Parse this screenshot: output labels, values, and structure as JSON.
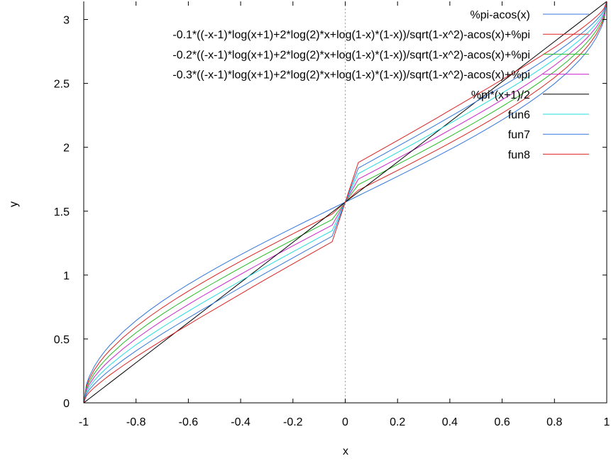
{
  "chart_data": {
    "type": "line",
    "xlabel": "x",
    "ylabel": "y",
    "xlim": [
      -1,
      1
    ],
    "ylim": [
      0,
      3.1416
    ],
    "xticks": [
      -1,
      -0.8,
      -0.6,
      -0.4,
      -0.2,
      0,
      0.2,
      0.4,
      0.6,
      0.8,
      1
    ],
    "xtick_labels": [
      "-1",
      "-0.8",
      "-0.6",
      "-0.4",
      "-0.2",
      "0",
      "0.2",
      "0.4",
      "0.6",
      "0.8",
      "1"
    ],
    "yticks": [
      0,
      0.5,
      1,
      1.5,
      2,
      2.5,
      3
    ],
    "ytick_labels": [
      "0",
      "0.5",
      "1",
      "1.5",
      "2",
      "2.5",
      "3"
    ],
    "grid": false,
    "zero_line": "dotted-vertical-at-x-0",
    "legend_position": "top-right",
    "x": [
      -1,
      -0.99,
      -0.98,
      -0.96,
      -0.94,
      -0.92,
      -0.9,
      -0.85,
      -0.8,
      -0.75,
      -0.7,
      -0.65,
      -0.6,
      -0.55,
      -0.5,
      -0.45,
      -0.4,
      -0.35,
      -0.3,
      -0.25,
      -0.2,
      -0.15,
      -0.1,
      -0.05,
      0,
      0.05,
      0.1,
      0.15,
      0.2,
      0.25,
      0.3,
      0.35,
      0.4,
      0.45,
      0.5,
      0.55,
      0.6,
      0.65,
      0.7,
      0.75,
      0.8,
      0.85,
      0.9,
      0.92,
      0.94,
      0.96,
      0.98,
      0.99,
      1
    ],
    "series": [
      {
        "name": "%pi-acos(x)",
        "color": "#3377dd",
        "values": [
          0,
          0.1415,
          0.2003,
          0.2838,
          0.3482,
          0.4027,
          0.451,
          0.5548,
          0.6435,
          0.7227,
          0.7954,
          0.8632,
          0.9273,
          0.9884,
          1.0472,
          1.104,
          1.1593,
          1.2132,
          1.266,
          1.3181,
          1.3694,
          1.4202,
          1.4706,
          1.5208,
          1.5708,
          1.6208,
          1.671,
          1.7214,
          1.7722,
          1.8235,
          1.8756,
          1.9284,
          1.9823,
          2.0376,
          2.0944,
          2.1532,
          2.2143,
          2.2784,
          2.3462,
          2.4189,
          2.4981,
          2.5868,
          2.6906,
          2.7389,
          2.7934,
          2.8578,
          2.9413,
          3.0001,
          3.1416
        ]
      },
      {
        "name": "-0.1*((-x-1)*log(x+1)+2*log(2)*x+log(1-x)*(1-x))/sqrt(1-x^2)-acos(x)+%pi",
        "color": "#dd2222",
        "values": [
          0,
          0.127,
          0.1803,
          0.2563,
          0.3158,
          0.3667,
          0.4121,
          0.5108,
          0.5962,
          0.6731,
          0.7443,
          0.8111,
          0.8747,
          0.9358,
          0.9947,
          1.0521,
          1.1082,
          1.1631,
          1.2169,
          1.2701,
          1.3225,
          1.3745,
          1.4261,
          1.4775,
          1.5708,
          1.6641,
          1.7155,
          1.7671,
          1.8191,
          1.8715,
          1.9247,
          1.9785,
          2.0334,
          2.0895,
          2.1469,
          2.2058,
          2.2669,
          2.3305,
          2.3973,
          2.4685,
          2.5454,
          2.6308,
          2.7295,
          2.7749,
          2.8258,
          2.8853,
          2.9613,
          3.0146,
          3.1416
        ]
      },
      {
        "name": "-0.2*((-x-1)*log(x+1)+2*log(2)*x+log(1-x)*(1-x))/sqrt(1-x^2)-acos(x)+%pi",
        "color": "#22bb22",
        "values": [
          0,
          0.1125,
          0.1602,
          0.2288,
          0.2834,
          0.3307,
          0.3733,
          0.4668,
          0.5489,
          0.6235,
          0.6933,
          0.759,
          0.8221,
          0.8832,
          0.9422,
          1.0002,
          1.057,
          1.113,
          1.1679,
          1.2221,
          1.2756,
          1.3288,
          1.3816,
          1.4342,
          1.5708,
          1.7074,
          1.76,
          1.8128,
          1.866,
          1.9195,
          1.9737,
          2.0286,
          2.0846,
          2.1414,
          2.1994,
          2.2584,
          2.3195,
          2.3826,
          2.4483,
          2.5181,
          2.5927,
          2.6748,
          2.7683,
          2.8109,
          2.8582,
          2.9128,
          2.9814,
          3.0291,
          3.1416
        ]
      },
      {
        "name": "-0.3*((-x-1)*log(x+1)+2*log(2)*x+log(1-x)*(1-x))/sqrt(1-x^2)-acos(x)+%pi",
        "color": "#cc22cc",
        "values": [
          0,
          0.098,
          0.1402,
          0.2014,
          0.251,
          0.2947,
          0.3345,
          0.4228,
          0.5016,
          0.5739,
          0.6422,
          0.707,
          0.7695,
          0.8305,
          0.8897,
          0.9483,
          1.0059,
          1.0629,
          1.1189,
          1.1741,
          1.2288,
          1.2831,
          1.3371,
          1.3909,
          1.5708,
          1.7507,
          1.8045,
          1.8585,
          1.9128,
          1.9675,
          2.0227,
          2.0787,
          2.1357,
          2.1933,
          2.2519,
          2.3111,
          2.3721,
          2.4346,
          2.4994,
          2.5677,
          2.64,
          2.7188,
          2.8072,
          2.8469,
          2.8906,
          2.9403,
          3.0014,
          3.0436,
          3.1416
        ]
      },
      {
        "name": "%pi*(x+1)/2",
        "color": "#000000",
        "values": [
          0,
          0.0157,
          0.0314,
          0.0628,
          0.0942,
          0.1257,
          0.1571,
          0.2356,
          0.3142,
          0.3927,
          0.4712,
          0.5498,
          0.6283,
          0.7069,
          0.7854,
          0.8639,
          0.9425,
          1.021,
          1.0996,
          1.1781,
          1.2566,
          1.3352,
          1.4137,
          1.4923,
          1.5708,
          1.6493,
          1.7279,
          1.8064,
          1.885,
          1.9635,
          2.042,
          2.1206,
          2.1991,
          2.2777,
          2.3562,
          2.4347,
          2.5133,
          2.5918,
          2.6704,
          2.7489,
          2.8274,
          2.906,
          2.9845,
          3.0159,
          3.0473,
          3.0788,
          3.1102,
          3.1259,
          3.1416
        ]
      },
      {
        "name": "fun6",
        "color": "#22dddd",
        "values": [
          0,
          0.0835,
          0.1201,
          0.1739,
          0.2186,
          0.2587,
          0.2957,
          0.3788,
          0.4543,
          0.5243,
          0.5912,
          0.655,
          0.7169,
          0.7781,
          0.8372,
          0.8964,
          0.9547,
          1.0128,
          1.0699,
          1.1261,
          1.1819,
          1.2374,
          1.2926,
          1.3476,
          1.5708,
          1.794,
          1.849,
          1.9042,
          1.9597,
          2.0155,
          2.0717,
          2.1288,
          2.1869,
          2.2452,
          2.3044,
          2.3635,
          2.4247,
          2.4866,
          2.5504,
          2.6173,
          2.6873,
          2.7628,
          2.8461,
          2.8829,
          2.923,
          2.9677,
          3.0215,
          3.0581,
          3.1416
        ]
      },
      {
        "name": "fun7",
        "color": "#3377dd",
        "values": [
          0,
          0.069,
          0.1001,
          0.1465,
          0.1862,
          0.2227,
          0.2569,
          0.3348,
          0.407,
          0.4747,
          0.5401,
          0.6029,
          0.6643,
          0.7256,
          0.7847,
          0.8444,
          0.9036,
          0.9627,
          1.0209,
          1.0781,
          1.135,
          1.1917,
          1.2481,
          1.3043,
          1.5708,
          1.8373,
          1.8935,
          1.9499,
          2.0066,
          2.0635,
          2.1207,
          2.1789,
          2.238,
          2.2972,
          2.3569,
          2.4162,
          2.4773,
          2.5387,
          2.6015,
          2.6669,
          2.7346,
          2.8068,
          2.8851,
          2.9189,
          2.9554,
          2.9951,
          3.0415,
          3.0726,
          3.1416
        ]
      },
      {
        "name": "fun8",
        "color": "#dd2222",
        "values": [
          0,
          0.0545,
          0.08,
          0.119,
          0.1538,
          0.1867,
          0.2181,
          0.2908,
          0.3597,
          0.4251,
          0.489,
          0.5508,
          0.6117,
          0.673,
          0.7322,
          0.7925,
          0.8524,
          0.9126,
          0.9719,
          1.0301,
          1.0881,
          1.1459,
          1.2036,
          1.261,
          1.5708,
          1.8806,
          1.938,
          1.9957,
          2.0535,
          2.1115,
          2.1697,
          2.229,
          2.2892,
          2.3491,
          2.4094,
          2.4686,
          2.5299,
          2.5908,
          2.6526,
          2.7165,
          2.7819,
          2.8508,
          2.924,
          2.9549,
          2.9878,
          3.0226,
          3.0616,
          3.0871,
          3.1416
        ]
      }
    ]
  }
}
